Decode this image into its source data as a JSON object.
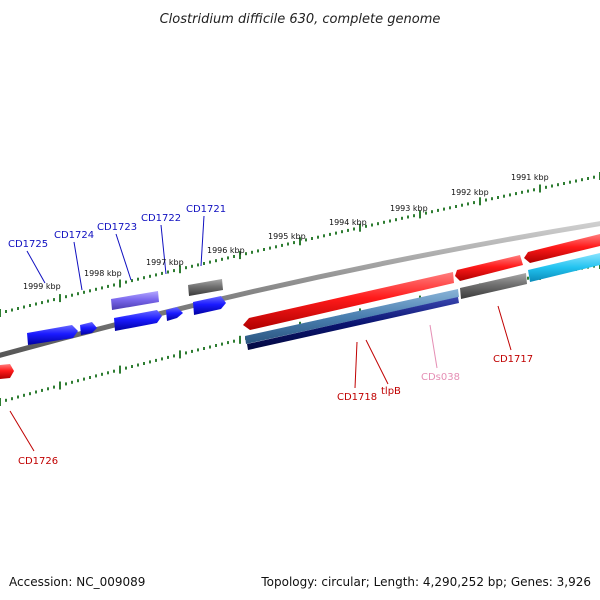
{
  "title": "Clostridium difficile 630, complete genome",
  "footer": {
    "accession": "Accession: NC_009089",
    "summary": "Topology: circular; Length: 4,290,252 bp; Genes: 3,926"
  },
  "colors": {
    "backbone": "#888888",
    "ticks": "#2e7d32",
    "forward_red": "#ff1a1a",
    "forward_gray": "#707070",
    "forward_blue": "#1a1aff",
    "purple": "#7b68ee",
    "steel": "#4a7fb0",
    "navy": "#0a1470",
    "cyan": "#22c3f0",
    "label_blue": "#1010c0",
    "label_red": "#c00000",
    "label_pink": "#e58fb5"
  },
  "kbp_labels": [
    {
      "id": "1991",
      "text": "1991 kbp"
    },
    {
      "id": "1992",
      "text": "1992 kbp"
    },
    {
      "id": "1993",
      "text": "1993 kbp"
    },
    {
      "id": "1994",
      "text": "1994 kbp"
    },
    {
      "id": "1995",
      "text": "1995 kbp"
    },
    {
      "id": "1996",
      "text": "1996 kbp"
    },
    {
      "id": "1997",
      "text": "1997 kbp"
    },
    {
      "id": "1998",
      "text": "1998 kbp"
    },
    {
      "id": "1999",
      "text": "1999 kbp"
    }
  ],
  "gene_labels": [
    {
      "id": "CD1721",
      "text": "CD1721",
      "color": "label_blue"
    },
    {
      "id": "CD1722",
      "text": "CD1722",
      "color": "label_blue"
    },
    {
      "id": "CD1723",
      "text": "CD1723",
      "color": "label_blue"
    },
    {
      "id": "CD1724",
      "text": "CD1724",
      "color": "label_blue"
    },
    {
      "id": "CD1725",
      "text": "CD1725",
      "color": "label_blue"
    },
    {
      "id": "CD1717",
      "text": "CD1717",
      "color": "label_red"
    },
    {
      "id": "CD1718",
      "text": "CD1718",
      "color": "label_red"
    },
    {
      "id": "tlpB",
      "text": "tlpB",
      "color": "label_red"
    },
    {
      "id": "CDs038",
      "text": "CDs038",
      "color": "label_pink"
    },
    {
      "id": "CD1726",
      "text": "CD1726",
      "color": "label_red"
    }
  ]
}
